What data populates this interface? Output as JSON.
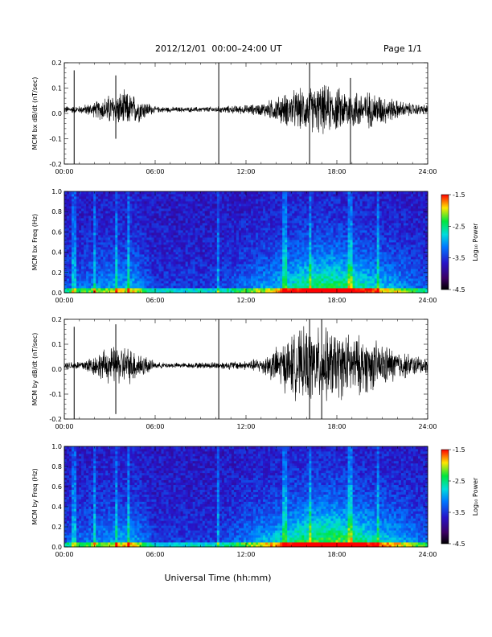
{
  "header": {
    "title": "2012/12/01  00:00–24:00 UT",
    "page": "Page 1/1"
  },
  "x_axis_title": "Universal Time (hh:mm)",
  "chart_data": [
    {
      "type": "line",
      "ylabel": "MCM bx dB/dt (nT/sec)",
      "xlim": [
        0,
        24
      ],
      "ylim": [
        -0.2,
        0.2
      ],
      "xticks": [
        "00:00",
        "06:00",
        "12:00",
        "18:00",
        "24:00"
      ],
      "yticks": [
        "-0.2",
        "-0.1",
        "0.0",
        "0.1",
        "0.2"
      ],
      "amplitude_envelope": [
        [
          0,
          0.012
        ],
        [
          1,
          0.012
        ],
        [
          2,
          0.025
        ],
        [
          3,
          0.05
        ],
        [
          4,
          0.06
        ],
        [
          5,
          0.04
        ],
        [
          6,
          0.01
        ],
        [
          8,
          0.008
        ],
        [
          10,
          0.01
        ],
        [
          12,
          0.015
        ],
        [
          13,
          0.02
        ],
        [
          14,
          0.04
        ],
        [
          15,
          0.06
        ],
        [
          16,
          0.07
        ],
        [
          17,
          0.08
        ],
        [
          18,
          0.07
        ],
        [
          19,
          0.065
        ],
        [
          20,
          0.06
        ],
        [
          21,
          0.05
        ],
        [
          22,
          0.03
        ],
        [
          23,
          0.02
        ],
        [
          24,
          0.015
        ]
      ],
      "spikes": [
        [
          0.65,
          0.17,
          -0.2
        ],
        [
          10.2,
          0.2,
          -0.2
        ],
        [
          16.2,
          0.2,
          -0.2
        ],
        [
          18.9,
          0.14,
          -0.2
        ],
        [
          3.4,
          0.15,
          -0.1
        ]
      ]
    },
    {
      "type": "heatmap",
      "ylabel": "MCM bx Freq (Hz)",
      "xlim": [
        0,
        24
      ],
      "ylim": [
        0,
        1.0
      ],
      "xticks": [
        "00:00",
        "06:00",
        "12:00",
        "18:00",
        "24:00"
      ],
      "yticks": [
        "0.0",
        "0.2",
        "0.4",
        "0.6",
        "0.8",
        "1.0"
      ],
      "colorbar": {
        "label": "Log₁₀ Power",
        "ticks": [
          "-1.5",
          "-2.5",
          "-3.5",
          "-4.5"
        ],
        "range": [
          -4.5,
          -1.5
        ]
      },
      "activity": [
        [
          0,
          0.15
        ],
        [
          3,
          0.3
        ],
        [
          4.5,
          0.35
        ],
        [
          6,
          0.1
        ],
        [
          10,
          0.1
        ],
        [
          14,
          0.35
        ],
        [
          16,
          0.55
        ],
        [
          18,
          0.6
        ],
        [
          20,
          0.45
        ],
        [
          22,
          0.3
        ],
        [
          24,
          0.15
        ]
      ],
      "lines": [
        0.65,
        2.0,
        3.4,
        4.2,
        10.2,
        14.6,
        16.2,
        18.9,
        20.7
      ]
    },
    {
      "type": "line",
      "ylabel": "MCM by dB/dt (nT/sec)",
      "xlim": [
        0,
        24
      ],
      "ylim": [
        -0.2,
        0.2
      ],
      "xticks": [
        "00:00",
        "06:00",
        "12:00",
        "18:00",
        "24:00"
      ],
      "yticks": [
        "-0.2",
        "-0.1",
        "0.0",
        "0.1",
        "0.2"
      ],
      "amplitude_envelope": [
        [
          0,
          0.012
        ],
        [
          1,
          0.015
        ],
        [
          2,
          0.035
        ],
        [
          3,
          0.06
        ],
        [
          4,
          0.065
        ],
        [
          5,
          0.045
        ],
        [
          6,
          0.01
        ],
        [
          8,
          0.008
        ],
        [
          10,
          0.012
        ],
        [
          12,
          0.015
        ],
        [
          13,
          0.025
        ],
        [
          14,
          0.06
        ],
        [
          15,
          0.1
        ],
        [
          16,
          0.12
        ],
        [
          17,
          0.12
        ],
        [
          18,
          0.11
        ],
        [
          19,
          0.1
        ],
        [
          20,
          0.09
        ],
        [
          21,
          0.07
        ],
        [
          22,
          0.05
        ],
        [
          23,
          0.035
        ],
        [
          24,
          0.025
        ]
      ],
      "spikes": [
        [
          0.65,
          0.17,
          -0.2
        ],
        [
          10.2,
          0.2,
          -0.2
        ],
        [
          16.2,
          0.2,
          -0.2
        ],
        [
          17.0,
          0.2,
          -0.2
        ],
        [
          3.4,
          0.18,
          -0.18
        ]
      ]
    },
    {
      "type": "heatmap",
      "ylabel": "MCM by Freq (Hz)",
      "xlim": [
        0,
        24
      ],
      "ylim": [
        0,
        1.0
      ],
      "xticks": [
        "00:00",
        "06:00",
        "12:00",
        "18:00",
        "24:00"
      ],
      "yticks": [
        "0.0",
        "0.2",
        "0.4",
        "0.6",
        "0.8",
        "1.0"
      ],
      "colorbar": {
        "label": "Log₁₀ Power",
        "ticks": [
          "-1.5",
          "-2.5",
          "-3.5",
          "-4.5"
        ],
        "range": [
          -4.5,
          -1.5
        ]
      },
      "activity": [
        [
          0,
          0.15
        ],
        [
          3,
          0.3
        ],
        [
          4.5,
          0.35
        ],
        [
          6,
          0.1
        ],
        [
          10,
          0.1
        ],
        [
          14,
          0.4
        ],
        [
          16,
          0.6
        ],
        [
          18,
          0.65
        ],
        [
          20,
          0.5
        ],
        [
          22,
          0.35
        ],
        [
          24,
          0.2
        ]
      ],
      "lines": [
        0.65,
        2.0,
        3.4,
        4.2,
        10.2,
        14.6,
        16.2,
        18.9,
        20.7
      ]
    }
  ]
}
